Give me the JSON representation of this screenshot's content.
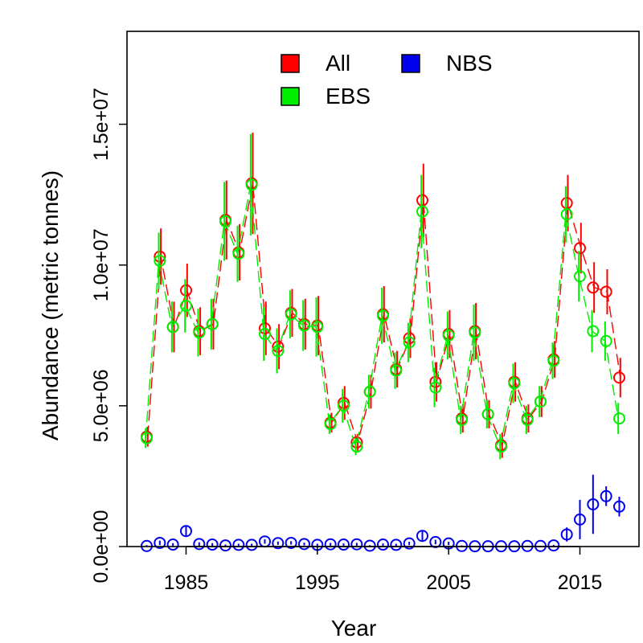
{
  "chart_data": {
    "type": "scatter",
    "xlabel": "Year",
    "ylabel": "Abundance (metric tonnes)",
    "xlim": [
      1980.5,
      2019.5
    ],
    "ylim": [
      0,
      18300000
    ],
    "x_ticks": [
      1985,
      1995,
      2005,
      2015
    ],
    "x_tick_labels": [
      "1985",
      "1995",
      "2005",
      "2015"
    ],
    "y_ticks": [
      0,
      5000000,
      10000000,
      15000000
    ],
    "y_tick_labels": [
      "0.0e+00",
      "5.0e+06",
      "1.0e+07",
      "1.5e+07"
    ],
    "legend_position": "top",
    "x": [
      1982,
      1983,
      1984,
      1985,
      1986,
      1987,
      1988,
      1989,
      1990,
      1991,
      1992,
      1993,
      1994,
      1995,
      1996,
      1997,
      1998,
      1999,
      2000,
      2001,
      2002,
      2003,
      2004,
      2005,
      2006,
      2007,
      2008,
      2009,
      2010,
      2011,
      2012,
      2013,
      2014,
      2015,
      2016,
      2017,
      2018
    ],
    "series": [
      {
        "name": "All",
        "color": "#ff0000",
        "values": [
          3900000,
          10300000,
          7800000,
          9100000,
          7650000,
          7900000,
          11600000,
          10450000,
          12900000,
          7750000,
          7100000,
          8300000,
          7900000,
          7850000,
          4400000,
          5100000,
          3700000,
          5500000,
          8250000,
          6300000,
          7400000,
          12300000,
          5850000,
          7550000,
          4550000,
          7650000,
          4700000,
          3600000,
          5850000,
          4550000,
          5150000,
          6650000,
          12200000,
          10600000,
          9200000,
          9050000,
          6000000
        ],
        "error": [
          350000,
          1000000,
          900000,
          950000,
          850000,
          900000,
          1400000,
          1000000,
          1800000,
          950000,
          800000,
          850000,
          900000,
          1050000,
          350000,
          600000,
          300000,
          600000,
          1000000,
          650000,
          700000,
          1300000,
          700000,
          850000,
          500000,
          1000000,
          500000,
          450000,
          700000,
          500000,
          550000,
          650000,
          1000000,
          900000,
          900000,
          800000,
          700000
        ]
      },
      {
        "name": "EBS",
        "color": "#00ee00",
        "values": [
          3850000,
          10150000,
          7800000,
          8550000,
          7600000,
          7900000,
          11550000,
          10400000,
          12850000,
          7550000,
          6950000,
          8250000,
          7850000,
          7800000,
          4350000,
          5000000,
          3550000,
          5500000,
          8200000,
          6250000,
          7250000,
          11900000,
          5650000,
          7500000,
          4500000,
          7600000,
          4700000,
          3550000,
          5800000,
          4500000,
          5150000,
          6600000,
          11800000,
          9600000,
          7650000,
          7300000,
          4550000
        ],
        "error": [
          350000,
          1000000,
          900000,
          950000,
          850000,
          900000,
          1400000,
          1000000,
          1800000,
          950000,
          800000,
          850000,
          900000,
          1050000,
          350000,
          600000,
          300000,
          600000,
          1000000,
          650000,
          700000,
          1300000,
          700000,
          850000,
          500000,
          1000000,
          500000,
          450000,
          700000,
          500000,
          550000,
          650000,
          1000000,
          900000,
          750000,
          700000,
          550000
        ]
      },
      {
        "name": "NBS",
        "color": "#0000ee",
        "values": [
          20000,
          130000,
          70000,
          550000,
          90000,
          70000,
          40000,
          60000,
          60000,
          180000,
          120000,
          130000,
          90000,
          60000,
          80000,
          70000,
          80000,
          30000,
          70000,
          60000,
          110000,
          380000,
          160000,
          110000,
          20000,
          10000,
          10000,
          10000,
          10000,
          20000,
          20000,
          40000,
          430000,
          960000,
          1500000,
          1790000,
          1420000
        ],
        "error": [
          30000,
          80000,
          50000,
          200000,
          60000,
          50000,
          30000,
          40000,
          40000,
          80000,
          60000,
          60000,
          50000,
          40000,
          50000,
          40000,
          50000,
          20000,
          40000,
          40000,
          60000,
          180000,
          80000,
          60000,
          20000,
          10000,
          10000,
          10000,
          10000,
          10000,
          10000,
          20000,
          250000,
          700000,
          1050000,
          350000,
          350000
        ]
      }
    ]
  }
}
